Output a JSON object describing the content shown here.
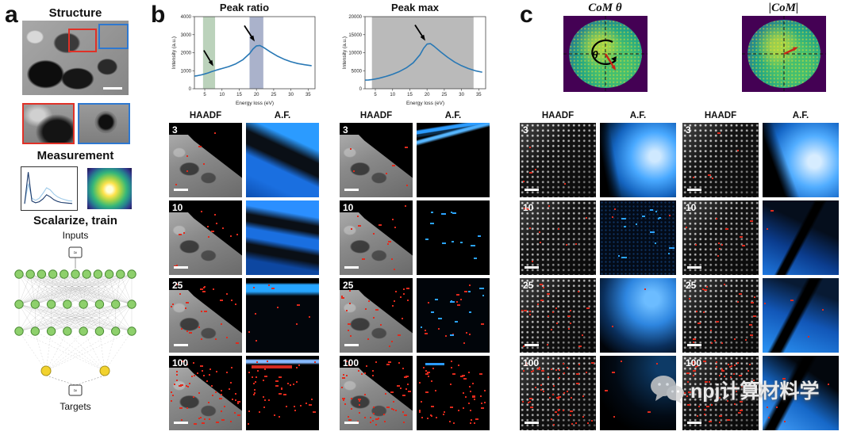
{
  "figure": {
    "panel_a": {
      "label": "a",
      "structure_title": "Structure",
      "measurement_title": "Measurement",
      "scalarize_title": "Scalarize, train",
      "inputs_label": "Inputs",
      "targets_label": "Targets",
      "approx_symbol": "≈",
      "mini_spectrum": {
        "series": [
          {
            "color": "#9ecae9",
            "y": [
              0.05,
              0.62,
              0.2,
              0.14,
              0.2,
              0.34,
              0.5,
              0.44,
              0.32,
              0.24,
              0.19,
              0.16,
              0.13,
              0.12
            ]
          },
          {
            "color": "#1b3a6b",
            "y": [
              0.04,
              0.95,
              0.12,
              0.07,
              0.1,
              0.18,
              0.3,
              0.24,
              0.16,
              0.11,
              0.08,
              0.07,
              0.06,
              0.05
            ]
          }
        ]
      }
    },
    "panel_b": {
      "label": "b",
      "grids": [
        {
          "columns": [
            "HAADF",
            "A.F."
          ],
          "rows": [
            "3",
            "10",
            "25",
            "100"
          ]
        },
        {
          "columns": [
            "HAADF",
            "A.F."
          ],
          "rows": [
            "3",
            "10",
            "25",
            "100"
          ]
        }
      ]
    },
    "panel_c": {
      "label": "c",
      "plot_titles": [
        "CoM θ",
        "|CoM|"
      ],
      "theta_symbol": "θ",
      "grids": [
        {
          "columns": [
            "HAADF",
            "A.F."
          ],
          "rows": [
            "3",
            "10",
            "25",
            "100"
          ]
        },
        {
          "columns": [
            "HAADF",
            "A.F."
          ],
          "rows": [
            "3",
            "10",
            "25",
            "100"
          ]
        }
      ]
    },
    "watermark": "npj计算材料学"
  },
  "chart_data": [
    {
      "type": "line",
      "title": "Peak ratio",
      "xlabel": "Energy loss (eV)",
      "ylabel": "Intensity (a.u.)",
      "xlim": [
        2,
        37
      ],
      "ylim": [
        0,
        4000
      ],
      "xticks": [
        5,
        10,
        15,
        20,
        25,
        30,
        35
      ],
      "yticks": [
        0,
        1000,
        2000,
        3000,
        4000
      ],
      "x": [
        2,
        3,
        4,
        5,
        6,
        7,
        8,
        9,
        10,
        12,
        14,
        16,
        18,
        19,
        20,
        21,
        22,
        24,
        26,
        28,
        30,
        32,
        34,
        36
      ],
      "y": [
        700,
        730,
        770,
        820,
        880,
        950,
        1010,
        1070,
        1120,
        1230,
        1380,
        1600,
        1950,
        2200,
        2380,
        2400,
        2300,
        2050,
        1820,
        1640,
        1500,
        1400,
        1330,
        1280
      ],
      "bands": [
        {
          "x0": 4.5,
          "x1": 8,
          "color": "rgba(120,165,120,0.5)"
        },
        {
          "x0": 18,
          "x1": 22,
          "color": "rgba(100,115,160,0.55)"
        }
      ],
      "arrows": [
        {
          "x": 7.5,
          "y": 1250,
          "tdx": -12,
          "tdy": -20
        },
        {
          "x": 19.5,
          "y": 2620,
          "tdx": -13,
          "tdy": -20
        }
      ],
      "legend": "none",
      "grid": false
    },
    {
      "type": "line",
      "title": "Peak max",
      "xlabel": "Energy loss (eV)",
      "ylabel": "Intensity (a.u.)",
      "xlim": [
        2,
        37
      ],
      "ylim": [
        0,
        20000
      ],
      "xticks": [
        5,
        10,
        15,
        20,
        25,
        30,
        35
      ],
      "yticks": [
        0,
        5000,
        10000,
        15000,
        20000
      ],
      "x": [
        2,
        3,
        4,
        5,
        6,
        7,
        8,
        9,
        10,
        12,
        14,
        16,
        18,
        19,
        20,
        21,
        22,
        24,
        26,
        28,
        30,
        32,
        34,
        36
      ],
      "y": [
        2400,
        2450,
        2550,
        2700,
        2900,
        3150,
        3400,
        3700,
        4000,
        4800,
        5800,
        7200,
        9500,
        11200,
        12400,
        12500,
        11800,
        10200,
        8700,
        7400,
        6400,
        5600,
        5000,
        4600
      ],
      "bands": [
        {
          "x0": 4,
          "x1": 33.5,
          "color": "rgba(140,140,140,0.6)"
        }
      ],
      "arrows": [
        {
          "x": 19.5,
          "y": 13300,
          "tdx": -13,
          "tdy": -20
        }
      ],
      "legend": "none",
      "grid": false
    }
  ]
}
